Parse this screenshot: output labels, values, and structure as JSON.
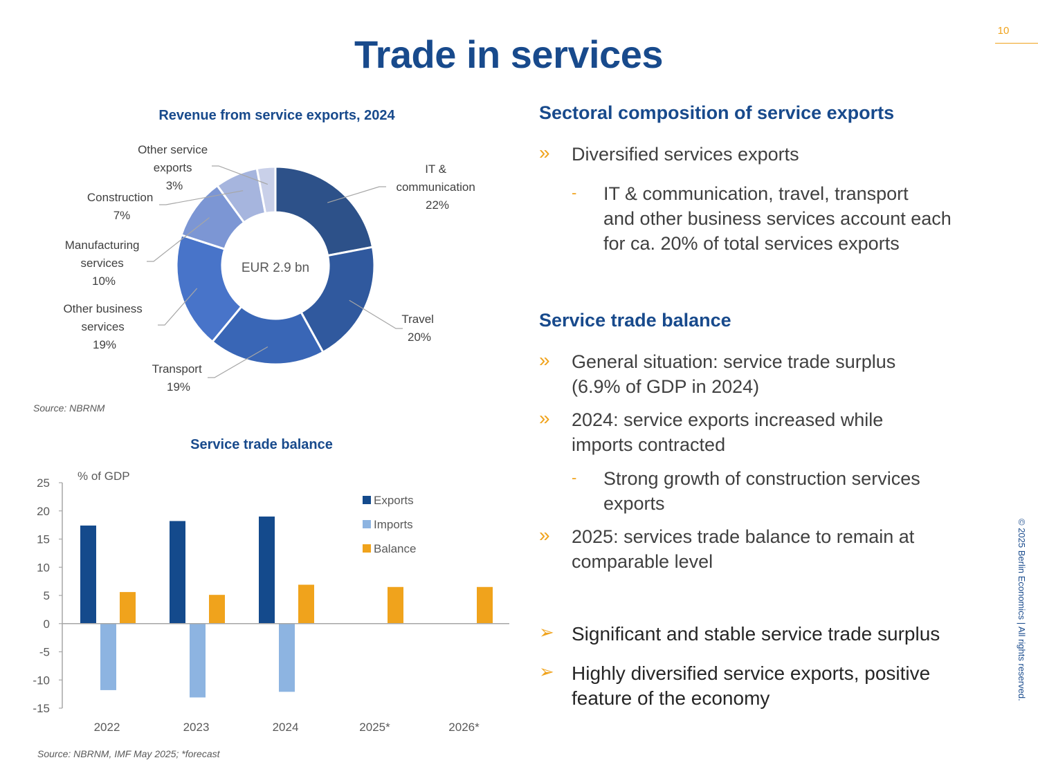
{
  "page": {
    "number": "10",
    "title": "Trade in services",
    "copyright": "© 2025 Berlin Economics | All rights reserved."
  },
  "donut": {
    "title": "Revenue from service exports, 2024",
    "center_label": "EUR 2.9 bn",
    "source": "Source: NBRNM",
    "label_lines": {
      "it": [
        "IT &",
        "communication",
        "22%"
      ],
      "travel": [
        "Travel",
        "20%"
      ],
      "transport": [
        "Transport",
        "19%"
      ],
      "obs": [
        "Other business",
        "services",
        "19%"
      ],
      "manuf": [
        "Manufacturing",
        "services",
        "10%"
      ],
      "constr": [
        "Construction",
        "7%"
      ],
      "other": [
        "Other service",
        "exports",
        "3%"
      ]
    }
  },
  "bars": {
    "title": "Service trade balance",
    "unit_label": "% of GDP",
    "source": "Source: NBRNM, IMF May 2025; *forecast",
    "legend": [
      "Exports",
      "Imports",
      "Balance"
    ]
  },
  "chart_data": [
    {
      "type": "pie",
      "title": "Revenue from service exports, 2024",
      "center_label": "EUR 2.9 bn",
      "categories": [
        "IT & communication",
        "Travel",
        "Transport",
        "Other business services",
        "Manufacturing services",
        "Construction",
        "Other service exports"
      ],
      "values": [
        22,
        20,
        19,
        19,
        10,
        7,
        3
      ],
      "unit": "%",
      "colors": [
        "#2d5189",
        "#30599e",
        "#3966b6",
        "#4874c9",
        "#7c96d4",
        "#a6b5de",
        "#c9d0e9"
      ]
    },
    {
      "type": "bar",
      "title": "Service trade balance",
      "ylabel": "% of GDP",
      "categories": [
        "2022",
        "2023",
        "2024",
        "2025*",
        "2026*"
      ],
      "series": [
        {
          "name": "Exports",
          "values": [
            17.4,
            18.2,
            19.0,
            null,
            null
          ],
          "color": "#144a8c"
        },
        {
          "name": "Imports",
          "values": [
            -11.8,
            -13.1,
            -12.1,
            null,
            null
          ],
          "color": "#8db4e1"
        },
        {
          "name": "Balance",
          "values": [
            5.6,
            5.1,
            6.9,
            6.5,
            6.5
          ],
          "color": "#f0a31c"
        }
      ],
      "ylim": [
        -15,
        25
      ],
      "yticks": [
        25,
        20,
        15,
        10,
        5,
        0,
        -5,
        -10,
        -15
      ],
      "grid": false,
      "legend": "right"
    }
  ],
  "right_panel": {
    "section1": {
      "heading": "Sectoral composition of service exports",
      "bullet1": "Diversified services exports",
      "sub1": [
        "IT & communication, travel, transport",
        "and other business services account each",
        "for ca. 20% of total services exports"
      ]
    },
    "section2": {
      "heading": "Service trade balance",
      "bullet1": [
        "General situation: service trade surplus",
        "(6.9% of GDP in 2024)"
      ],
      "bullet2": [
        "2024: service exports increased while",
        "imports contracted"
      ],
      "sub1": [
        "Strong growth of construction services",
        "exports"
      ],
      "bullet3": [
        "2025: services trade balance to remain at",
        "comparable level"
      ]
    },
    "conclusions": {
      "c1": "Significant and stable service trade surplus",
      "c2": [
        "Highly diversified service exports, positive",
        "feature of the economy"
      ]
    },
    "marks": {
      "bullet": "»",
      "dash": "-",
      "arrow": "➢"
    }
  }
}
